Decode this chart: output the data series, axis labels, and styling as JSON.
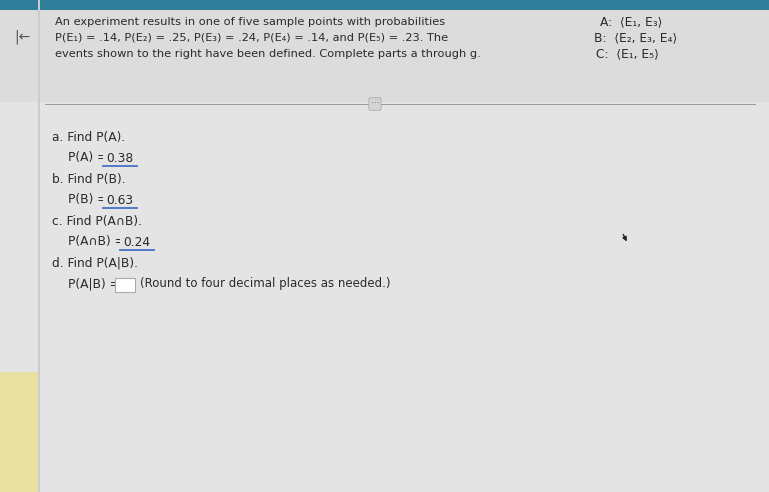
{
  "bg_outer": "#c8c8c8",
  "top_bar_color": "#2e7d99",
  "content_bg": "#e8e8e8",
  "left_area_bg": "#f0f0f0",
  "yellow_stripe_color": "#e8e0a0",
  "arrow_color": "#555555",
  "title_line1": "An experiment results in one of five sample points with probabilities",
  "title_line2": "P(E₁) = .14, P(E₂) = .25, P(E₃) = .24, P(E₄) = .14, and P(E₅) = .23. The",
  "title_line3": "events shown to the right have been defined. Complete parts a through g.",
  "set_A": "A:  ⟨E₁, E₃⟩",
  "set_B": "B:  ⟨E₂, E₃, E₄⟩",
  "set_C": "C:  ⟨E₁, E₅⟩",
  "part_a_label": "a. Find P(A).",
  "part_b_label": "b. Find P(B).",
  "part_c_label": "c. Find P(A∩B).",
  "part_d_label": "d. Find P(A|B).",
  "ans_a": "0.38",
  "ans_b": "0.63",
  "ans_c": "0.24",
  "part_d_suffix": "(Round to four decimal places as needed.)",
  "underline_color": "#4472c4",
  "text_color": "#2a2a2a",
  "divider_color": "#999999",
  "ellipsis_bg": "#d4d4d4",
  "ellipsis_border": "#aaaaaa"
}
